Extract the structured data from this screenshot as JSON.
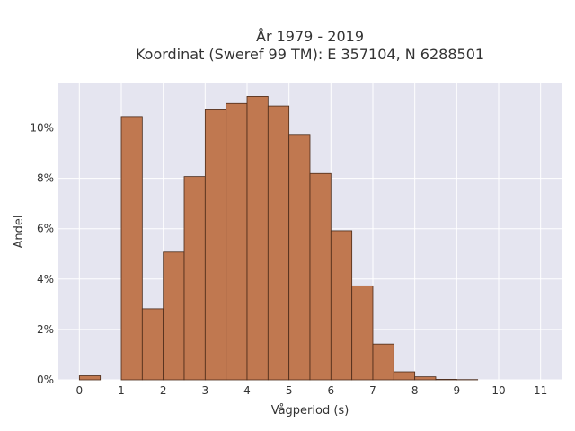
{
  "chart_data": {
    "type": "bar",
    "title": "År 1979 - 2019",
    "subtitle": "Koordinat (Sweref 99 TM): E 357104, N 6288501",
    "xlabel": "Vågperiod (s)",
    "ylabel": "Andel",
    "bin_width": 0.5,
    "bins": [
      {
        "start": 0.0,
        "value": 0.16
      },
      {
        "start": 1.0,
        "value": 10.45
      },
      {
        "start": 1.5,
        "value": 2.82
      },
      {
        "start": 2.0,
        "value": 5.07
      },
      {
        "start": 2.5,
        "value": 8.07
      },
      {
        "start": 3.0,
        "value": 10.75
      },
      {
        "start": 3.5,
        "value": 10.97
      },
      {
        "start": 4.0,
        "value": 11.25
      },
      {
        "start": 4.5,
        "value": 10.87
      },
      {
        "start": 5.0,
        "value": 9.74
      },
      {
        "start": 5.5,
        "value": 8.19
      },
      {
        "start": 6.0,
        "value": 5.92
      },
      {
        "start": 6.5,
        "value": 3.73
      },
      {
        "start": 7.0,
        "value": 1.42
      },
      {
        "start": 7.5,
        "value": 0.32
      },
      {
        "start": 8.0,
        "value": 0.12
      },
      {
        "start": 8.5,
        "value": 0.02
      },
      {
        "start": 9.0,
        "value": 0.01
      }
    ],
    "xlim": [
      -0.5,
      11.5
    ],
    "ylim": [
      0,
      11.8
    ],
    "x_ticks": [
      0,
      1,
      2,
      3,
      4,
      5,
      6,
      7,
      8,
      9,
      10,
      11
    ],
    "y_ticks": [
      0,
      2,
      4,
      6,
      8,
      10
    ],
    "y_tick_labels": [
      "0%",
      "2%",
      "4%",
      "6%",
      "8%",
      "10%"
    ],
    "grid": true,
    "colors": {
      "bar_fill": "#c07850",
      "bar_edge": "#4a2a18",
      "plot_background": "#e5e5f0",
      "grid": "#ffffff"
    }
  }
}
